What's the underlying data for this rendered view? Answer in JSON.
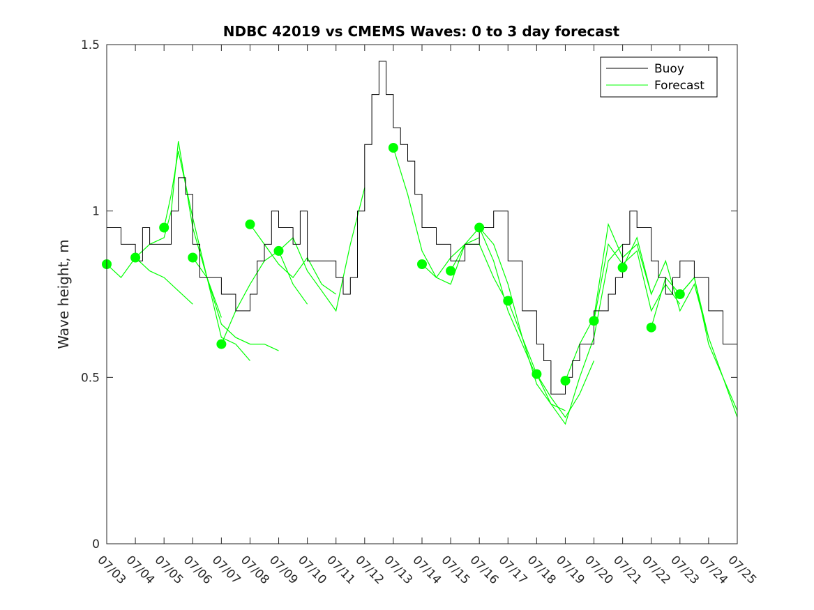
{
  "chart_data": {
    "type": "line",
    "title": "NDBC 42019 vs CMEMS Waves: 0 to 3 day forecast",
    "xlabel": "",
    "ylabel": "Wave height, m",
    "xlim": [
      "07/03",
      "07/25"
    ],
    "ylim": [
      0,
      1.5
    ],
    "x_ticks": [
      "07/03",
      "07/04",
      "07/05",
      "07/06",
      "07/07",
      "07/08",
      "07/09",
      "07/10",
      "07/11",
      "07/12",
      "07/13",
      "07/14",
      "07/15",
      "07/16",
      "07/17",
      "07/18",
      "07/19",
      "07/20",
      "07/21",
      "07/22",
      "07/23",
      "07/24",
      "07/25"
    ],
    "y_ticks": [
      "0",
      "0.5",
      "1",
      "1.5"
    ],
    "grid": false,
    "legend": {
      "position": "top-right",
      "entries": [
        "Buoy",
        "Forecast"
      ]
    },
    "colors": {
      "buoy": "#000000",
      "forecast": "#00ff00"
    },
    "series": [
      {
        "name": "Buoy",
        "x": [
          "07/03 00:00",
          "07/03 12:00",
          "07/04 00:00",
          "07/04 06:00",
          "07/04 12:00",
          "07/05 00:00",
          "07/05 06:00",
          "07/05 12:00",
          "07/05 18:00",
          "07/06 00:00",
          "07/06 06:00",
          "07/06 12:00",
          "07/07 00:00",
          "07/07 12:00",
          "07/08 00:00",
          "07/08 06:00",
          "07/08 12:00",
          "07/08 18:00",
          "07/09 00:00",
          "07/09 12:00",
          "07/09 18:00",
          "07/10 00:00",
          "07/10 12:00",
          "07/11 00:00",
          "07/11 06:00",
          "07/11 12:00",
          "07/11 18:00",
          "07/12 00:00",
          "07/12 06:00",
          "07/12 12:00",
          "07/12 18:00",
          "07/13 00:00",
          "07/13 06:00",
          "07/13 12:00",
          "07/13 18:00",
          "07/14 00:00",
          "07/14 12:00",
          "07/15 00:00",
          "07/15 12:00",
          "07/16 00:00",
          "07/16 12:00",
          "07/17 00:00",
          "07/17 12:00",
          "07/18 00:00",
          "07/18 06:00",
          "07/18 12:00",
          "07/19 00:00",
          "07/19 06:00",
          "07/19 12:00",
          "07/20 00:00",
          "07/20 12:00",
          "07/20 18:00",
          "07/21 00:00",
          "07/21 06:00",
          "07/21 12:00",
          "07/22 00:00",
          "07/22 06:00",
          "07/22 12:00",
          "07/22 18:00",
          "07/23 00:00",
          "07/23 12:00",
          "07/24 00:00",
          "07/24 12:00",
          "07/25 00:00"
        ],
        "values": [
          0.95,
          0.9,
          0.85,
          0.95,
          0.9,
          0.9,
          1.0,
          1.1,
          1.05,
          0.9,
          0.8,
          0.8,
          0.75,
          0.7,
          0.75,
          0.85,
          0.9,
          1.0,
          0.95,
          0.9,
          1.0,
          0.85,
          0.85,
          0.8,
          0.75,
          0.8,
          1.0,
          1.2,
          1.35,
          1.45,
          1.35,
          1.25,
          1.2,
          1.15,
          1.05,
          0.95,
          0.9,
          0.85,
          0.9,
          0.95,
          1.0,
          0.85,
          0.7,
          0.6,
          0.55,
          0.45,
          0.5,
          0.55,
          0.6,
          0.7,
          0.75,
          0.8,
          0.9,
          1.0,
          0.95,
          0.85,
          0.8,
          0.75,
          0.8,
          0.85,
          0.8,
          0.7,
          0.6,
          0.5
        ]
      },
      {
        "name": "Forecast",
        "runs": [
          {
            "x": [
              "07/03 00:00",
              "07/03 12:00",
              "07/04 00:00",
              "07/04 12:00",
              "07/05 00:00",
              "07/05 12:00",
              "07/06 00:00"
            ],
            "values": [
              0.84,
              0.8,
              0.86,
              0.82,
              0.8,
              0.76,
              0.72
            ]
          },
          {
            "x": [
              "07/04 00:00",
              "07/04 12:00",
              "07/05 00:00",
              "07/05 06:00",
              "07/05 12:00",
              "07/06 00:00",
              "07/06 12:00",
              "07/07 00:00"
            ],
            "values": [
              0.86,
              0.9,
              0.92,
              1.0,
              1.21,
              0.95,
              0.8,
              0.68
            ]
          },
          {
            "x": [
              "07/05 00:00",
              "07/05 06:00",
              "07/05 12:00",
              "07/06 00:00",
              "07/06 12:00",
              "07/07 00:00",
              "07/07 12:00",
              "07/08 00:00"
            ],
            "values": [
              0.95,
              1.05,
              1.18,
              0.98,
              0.8,
              0.62,
              0.6,
              0.55
            ]
          },
          {
            "x": [
              "07/06 00:00",
              "07/06 12:00",
              "07/07 00:00",
              "07/07 12:00",
              "07/08 00:00",
              "07/08 12:00",
              "07/09 00:00"
            ],
            "values": [
              0.86,
              0.8,
              0.66,
              0.62,
              0.6,
              0.6,
              0.58
            ]
          },
          {
            "x": [
              "07/07 00:00",
              "07/07 12:00",
              "07/08 00:00",
              "07/08 12:00",
              "07/09 00:00",
              "07/09 12:00",
              "07/10 00:00"
            ],
            "values": [
              0.6,
              0.7,
              0.78,
              0.85,
              0.88,
              0.78,
              0.72
            ]
          },
          {
            "x": [
              "07/08 00:00",
              "07/08 12:00",
              "07/09 00:00",
              "07/09 12:00",
              "07/10 00:00",
              "07/10 12:00",
              "07/11 00:00"
            ],
            "values": [
              0.96,
              0.9,
              0.84,
              0.8,
              0.86,
              0.78,
              0.75
            ]
          },
          {
            "x": [
              "07/09 00:00",
              "07/09 12:00",
              "07/10 00:00",
              "07/10 12:00",
              "07/11 00:00",
              "07/11 12:00",
              "07/12 00:00"
            ],
            "values": [
              0.88,
              0.92,
              0.82,
              0.76,
              0.7,
              0.9,
              1.07
            ]
          },
          {
            "x": [
              "07/13 00:00",
              "07/13 12:00",
              "07/14 00:00",
              "07/14 12:00",
              "07/15 00:00",
              "07/15 12:00",
              "07/16 00:00"
            ],
            "values": [
              1.19,
              1.05,
              0.88,
              0.8,
              0.78,
              0.9,
              0.92
            ]
          },
          {
            "x": [
              "07/14 00:00",
              "07/14 12:00",
              "07/15 00:00",
              "07/15 12:00",
              "07/16 00:00",
              "07/16 12:00",
              "07/17 00:00"
            ],
            "values": [
              0.84,
              0.8,
              0.86,
              0.9,
              0.9,
              0.8,
              0.72
            ]
          },
          {
            "x": [
              "07/15 00:00",
              "07/15 12:00",
              "07/16 00:00",
              "07/16 12:00",
              "07/17 00:00",
              "07/17 12:00",
              "07/18 00:00"
            ],
            "values": [
              0.82,
              0.9,
              0.95,
              0.85,
              0.7,
              0.6,
              0.5
            ]
          },
          {
            "x": [
              "07/16 00:00",
              "07/16 12:00",
              "07/17 00:00",
              "07/17 12:00",
              "07/18 00:00",
              "07/18 12:00",
              "07/19 00:00"
            ],
            "values": [
              0.95,
              0.9,
              0.78,
              0.62,
              0.48,
              0.42,
              0.4
            ]
          },
          {
            "x": [
              "07/17 00:00",
              "07/17 12:00",
              "07/18 00:00",
              "07/18 12:00",
              "07/19 00:00",
              "07/19 12:00",
              "07/20 00:00"
            ],
            "values": [
              0.73,
              0.62,
              0.51,
              0.44,
              0.38,
              0.45,
              0.55
            ]
          },
          {
            "x": [
              "07/18 00:00",
              "07/18 12:00",
              "07/19 00:00",
              "07/19 12:00",
              "07/20 00:00",
              "07/20 12:00",
              "07/21 00:00"
            ],
            "values": [
              0.51,
              0.42,
              0.36,
              0.5,
              0.62,
              0.85,
              0.9
            ]
          },
          {
            "x": [
              "07/19 00:00",
              "07/19 12:00",
              "07/20 00:00",
              "07/20 12:00",
              "07/21 00:00",
              "07/21 12:00",
              "07/22 00:00"
            ],
            "values": [
              0.49,
              0.6,
              0.68,
              0.96,
              0.86,
              0.9,
              0.75
            ]
          },
          {
            "x": [
              "07/20 00:00",
              "07/20 12:00",
              "07/21 00:00",
              "07/21 12:00",
              "07/22 00:00",
              "07/22 12:00",
              "07/23 00:00"
            ],
            "values": [
              0.67,
              0.9,
              0.84,
              0.88,
              0.7,
              0.78,
              0.72
            ]
          },
          {
            "x": [
              "07/21 00:00",
              "07/21 12:00",
              "07/22 00:00",
              "07/22 12:00",
              "07/23 00:00",
              "07/23 12:00",
              "07/24 00:00"
            ],
            "values": [
              0.83,
              0.92,
              0.75,
              0.85,
              0.7,
              0.78,
              0.62
            ]
          },
          {
            "x": [
              "07/22 00:00",
              "07/22 12:00",
              "07/23 00:00",
              "07/23 12:00",
              "07/24 00:00",
              "07/24 12:00",
              "07/25 00:00"
            ],
            "values": [
              0.65,
              0.8,
              0.75,
              0.8,
              0.62,
              0.5,
              0.4
            ]
          },
          {
            "x": [
              "07/23 00:00",
              "07/23 12:00",
              "07/24 00:00",
              "07/24 12:00",
              "07/25 00:00"
            ],
            "values": [
              0.75,
              0.8,
              0.6,
              0.5,
              0.38
            ]
          }
        ],
        "start_points": {
          "x": [
            "07/03",
            "07/04",
            "07/05",
            "07/06",
            "07/07",
            "07/08",
            "07/09",
            "07/13",
            "07/14",
            "07/15",
            "07/16",
            "07/17",
            "07/18",
            "07/19",
            "07/20",
            "07/21",
            "07/22",
            "07/23"
          ],
          "values": [
            0.84,
            0.86,
            0.95,
            0.86,
            0.6,
            0.96,
            0.88,
            1.19,
            0.84,
            0.82,
            0.95,
            0.73,
            0.51,
            0.49,
            0.67,
            0.83,
            0.65,
            0.75
          ]
        }
      }
    ]
  }
}
